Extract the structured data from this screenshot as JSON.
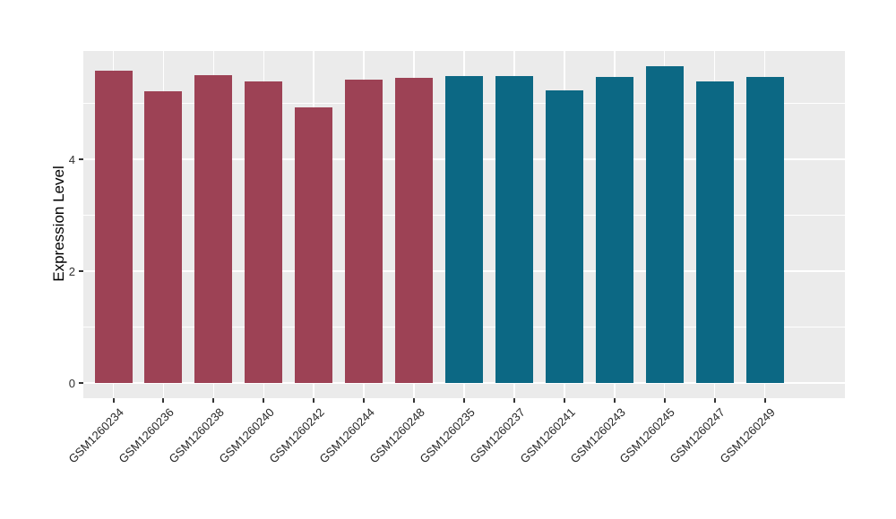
{
  "chart_data": {
    "type": "bar",
    "title": "",
    "xlabel": "",
    "ylabel": "Expression Level",
    "y_ticks": [
      0,
      2,
      4
    ],
    "y_minor_ticks": [
      1,
      3,
      5
    ],
    "ylim": [
      -0.27,
      5.94
    ],
    "grid": "white major and minor gridlines on gray panel, ggplot style",
    "legend_position": "none",
    "colors": {
      "panel_background": "#ebebeb",
      "gridline": "#ffffff",
      "tick_mark": "#333333",
      "tick_label": "#303030",
      "axis_title": "#000000",
      "group_a": "#9d4255",
      "group_b": "#0c6884"
    },
    "categories": [
      "GSM1260234",
      "GSM1260236",
      "GSM1260238",
      "GSM1260240",
      "GSM1260242",
      "GSM1260244",
      "GSM1260248",
      "GSM1260235",
      "GSM1260237",
      "GSM1260241",
      "GSM1260243",
      "GSM1260245",
      "GSM1260247",
      "GSM1260249"
    ],
    "bars": [
      {
        "label": "GSM1260234",
        "value": 5.58,
        "group": "group_a"
      },
      {
        "label": "GSM1260236",
        "value": 5.22,
        "group": "group_a"
      },
      {
        "label": "GSM1260238",
        "value": 5.5,
        "group": "group_a"
      },
      {
        "label": "GSM1260240",
        "value": 5.39,
        "group": "group_a"
      },
      {
        "label": "GSM1260242",
        "value": 4.93,
        "group": "group_a"
      },
      {
        "label": "GSM1260244",
        "value": 5.42,
        "group": "group_a"
      },
      {
        "label": "GSM1260248",
        "value": 5.46,
        "group": "group_a"
      },
      {
        "label": "GSM1260235",
        "value": 5.49,
        "group": "group_b"
      },
      {
        "label": "GSM1260237",
        "value": 5.49,
        "group": "group_b"
      },
      {
        "label": "GSM1260241",
        "value": 5.23,
        "group": "group_b"
      },
      {
        "label": "GSM1260243",
        "value": 5.47,
        "group": "group_b"
      },
      {
        "label": "GSM1260245",
        "value": 5.66,
        "group": "group_b"
      },
      {
        "label": "GSM1260247",
        "value": 5.39,
        "group": "group_b"
      },
      {
        "label": "GSM1260249",
        "value": 5.48,
        "group": "group_b"
      }
    ]
  }
}
